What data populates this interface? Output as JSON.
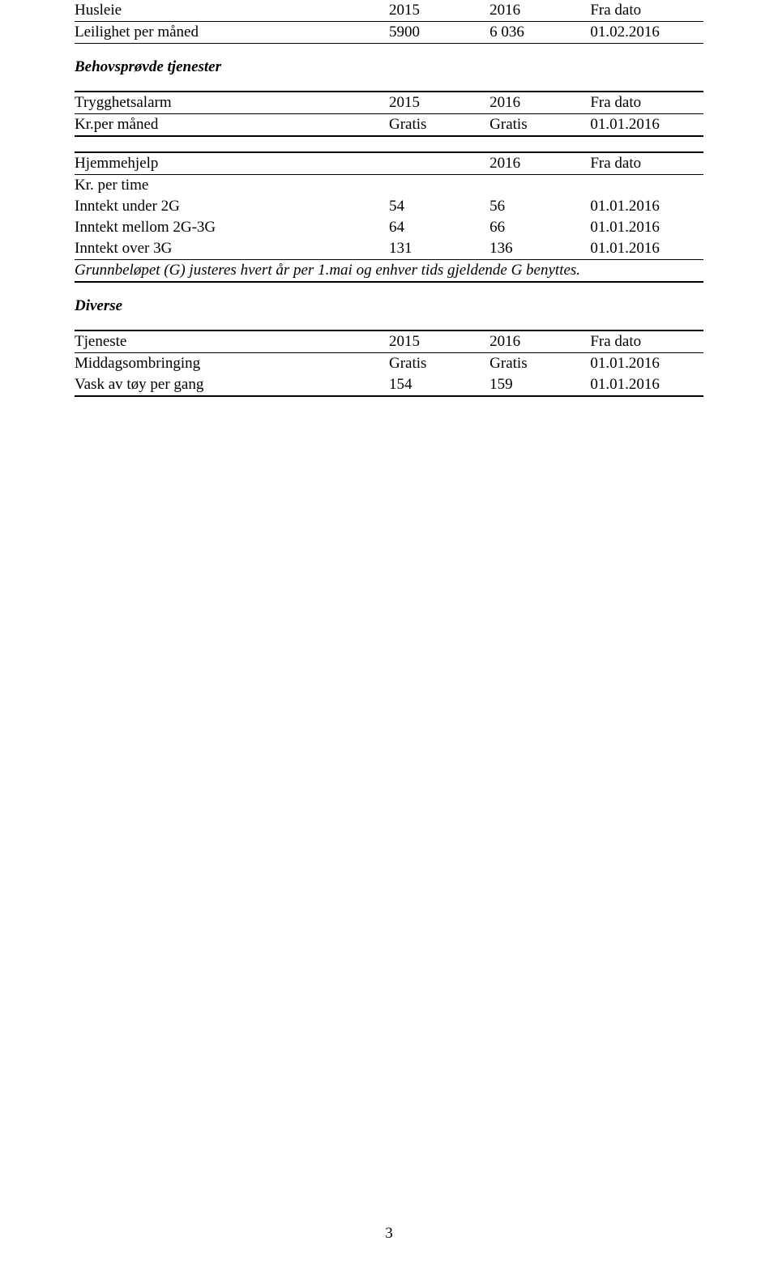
{
  "husleie": {
    "header": {
      "c1": "Husleie",
      "c2": "2015",
      "c3": "2016",
      "c4": "Fra dato"
    },
    "row": {
      "c1": "Leilighet per måned",
      "c2": "5900",
      "c3": "6 036",
      "c4": "01.02.2016"
    }
  },
  "behovsprovde_heading": "Behovsprøvde tjenester",
  "trygghetsalarm": {
    "header": {
      "c1": "Trygghetsalarm",
      "c2": "2015",
      "c3": "2016",
      "c4": "Fra dato"
    },
    "row": {
      "c1": "Kr.per måned",
      "c2": "Gratis",
      "c3": "Gratis",
      "c4": "01.01.2016"
    }
  },
  "hjemmehjelp": {
    "header": {
      "c1": "Hjemmehjelp",
      "c2": "2016",
      "c3": "Fra dato"
    },
    "subhead": "Kr. per time",
    "rows": [
      {
        "c1": "Inntekt under 2G",
        "c2": "54",
        "c3": "56",
        "c4": "01.01.2016"
      },
      {
        "c1": "Inntekt mellom 2G-3G",
        "c2": "64",
        "c3": "66",
        "c4": "01.01.2016"
      },
      {
        "c1": "Inntekt over 3G",
        "c2": "131",
        "c3": "136",
        "c4": "01.01.2016"
      }
    ],
    "note": "Grunnbeløpet (G) justeres hvert år per 1.mai og enhver tids gjeldende G benyttes."
  },
  "diverse_heading": "Diverse",
  "tjeneste": {
    "header": {
      "c1": "Tjeneste",
      "c2": "2015",
      "c3": "2016",
      "c4": "Fra dato"
    },
    "rows": [
      {
        "c1": "Middagsombringing",
        "c2": "Gratis",
        "c3": "Gratis",
        "c4": "01.01.2016"
      },
      {
        "c1": "Vask av tøy per gang",
        "c2": "154",
        "c3": "159",
        "c4": "01.01.2016"
      }
    ]
  },
  "page_number": "3"
}
